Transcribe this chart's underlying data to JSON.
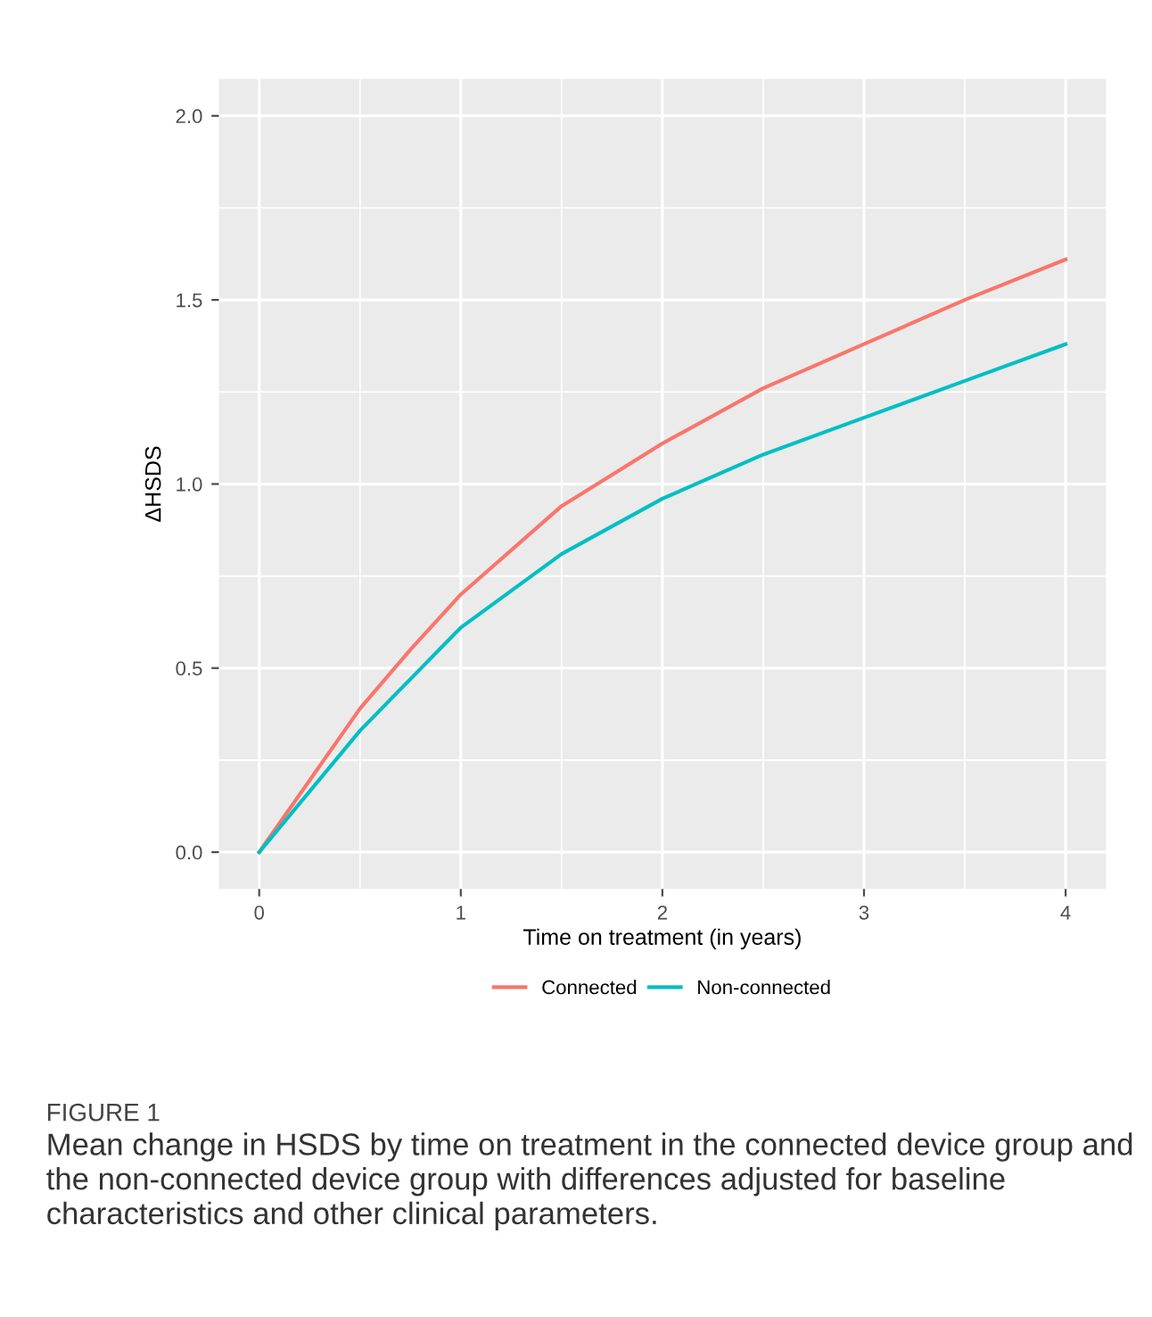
{
  "chart_data": {
    "type": "line",
    "xlabel": "Time on treatment (in years)",
    "ylabel": "ΔHSDS",
    "x": [
      0,
      0.5,
      0.75,
      1,
      1.5,
      2,
      2.5,
      3,
      3.5,
      4
    ],
    "series": [
      {
        "name": "Connected",
        "color": "#f8766d",
        "values": [
          0,
          0.39,
          0.55,
          0.7,
          0.94,
          1.11,
          1.26,
          1.38,
          1.5,
          1.61
        ]
      },
      {
        "name": "Non-connected",
        "color": "#00bfc4",
        "values": [
          0,
          0.33,
          0.47,
          0.61,
          0.81,
          0.96,
          1.08,
          1.18,
          1.28,
          1.38
        ]
      }
    ],
    "xlim": [
      -0.2,
      4.2
    ],
    "ylim": [
      -0.1,
      2.1
    ],
    "xticks": [
      0,
      1,
      2,
      3,
      4
    ],
    "yticks": [
      {
        "value": 0,
        "label": "0.0"
      },
      {
        "value": 0.5,
        "label": "0.5"
      },
      {
        "value": 1,
        "label": "1.0"
      },
      {
        "value": 1.5,
        "label": "1.5"
      },
      {
        "value": 2,
        "label": "2.0"
      }
    ],
    "grid": true,
    "legend": "bottom",
    "marker": "none",
    "line_style": "solid",
    "annotations": [
      "FIGURE 1",
      "Mean change in HSDS by time on treatment in the connected device group and the non-connected device group with differences adjusted for baseline characteristics and other clinical parameters."
    ]
  }
}
